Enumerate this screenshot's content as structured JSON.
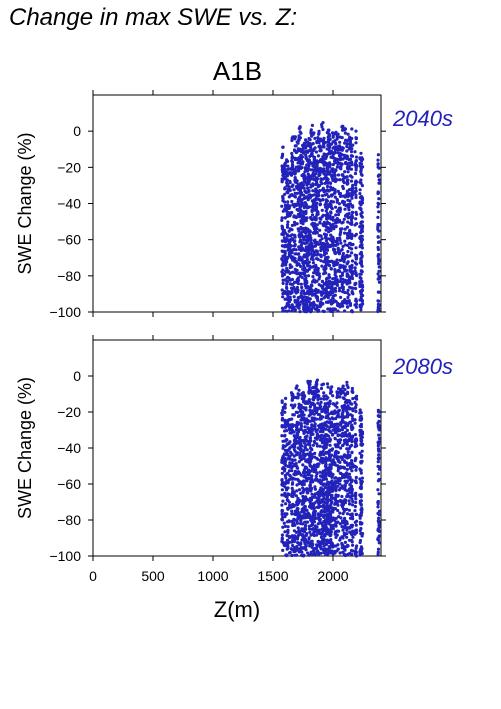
{
  "figure_title": "Change in max SWE vs. Z:",
  "scenario": "A1B",
  "colors": {
    "points": "#2222bb",
    "period_label": "#2222bb",
    "axes": "#000000"
  },
  "chart_data": [
    {
      "type": "scatter",
      "panel_label": "2040s",
      "ylabel": "SWE Change (%)",
      "xlabel": "",
      "xlim": [
        0,
        2400
      ],
      "ylim": [
        -100,
        20
      ],
      "yticks": [
        0,
        -20,
        -40,
        -60,
        -80,
        -100
      ],
      "ytick_labels": [
        "0",
        "−20",
        "−40",
        "−60",
        "−80",
        "−100"
      ],
      "xticks": [
        0,
        500,
        1000,
        1500,
        2000
      ],
      "xtick_labels": [],
      "series": [
        {
          "color": "#2222bb",
          "x_range": [
            1570,
            2390
          ],
          "y_range": [
            -100,
            6
          ],
          "note_shape": "dense vertical strips of points per elevation"
        }
      ]
    },
    {
      "type": "scatter",
      "panel_label": "2080s",
      "ylabel": "SWE Change (%)",
      "xlabel": "Z(m)",
      "xlim": [
        0,
        2400
      ],
      "ylim": [
        -100,
        20
      ],
      "yticks": [
        0,
        -20,
        -40,
        -60,
        -80,
        -100
      ],
      "ytick_labels": [
        "0",
        "−20",
        "−40",
        "−60",
        "−80",
        "−100"
      ],
      "xticks": [
        0,
        500,
        1000,
        1500,
        2000
      ],
      "xtick_labels": [
        "0",
        "500",
        "1000",
        "1500",
        "2000"
      ],
      "series": [
        {
          "color": "#2222bb",
          "x_range": [
            1570,
            2390
          ],
          "y_range": [
            -100,
            -1
          ],
          "note_shape": "dense vertical strips of points per elevation"
        }
      ]
    }
  ]
}
